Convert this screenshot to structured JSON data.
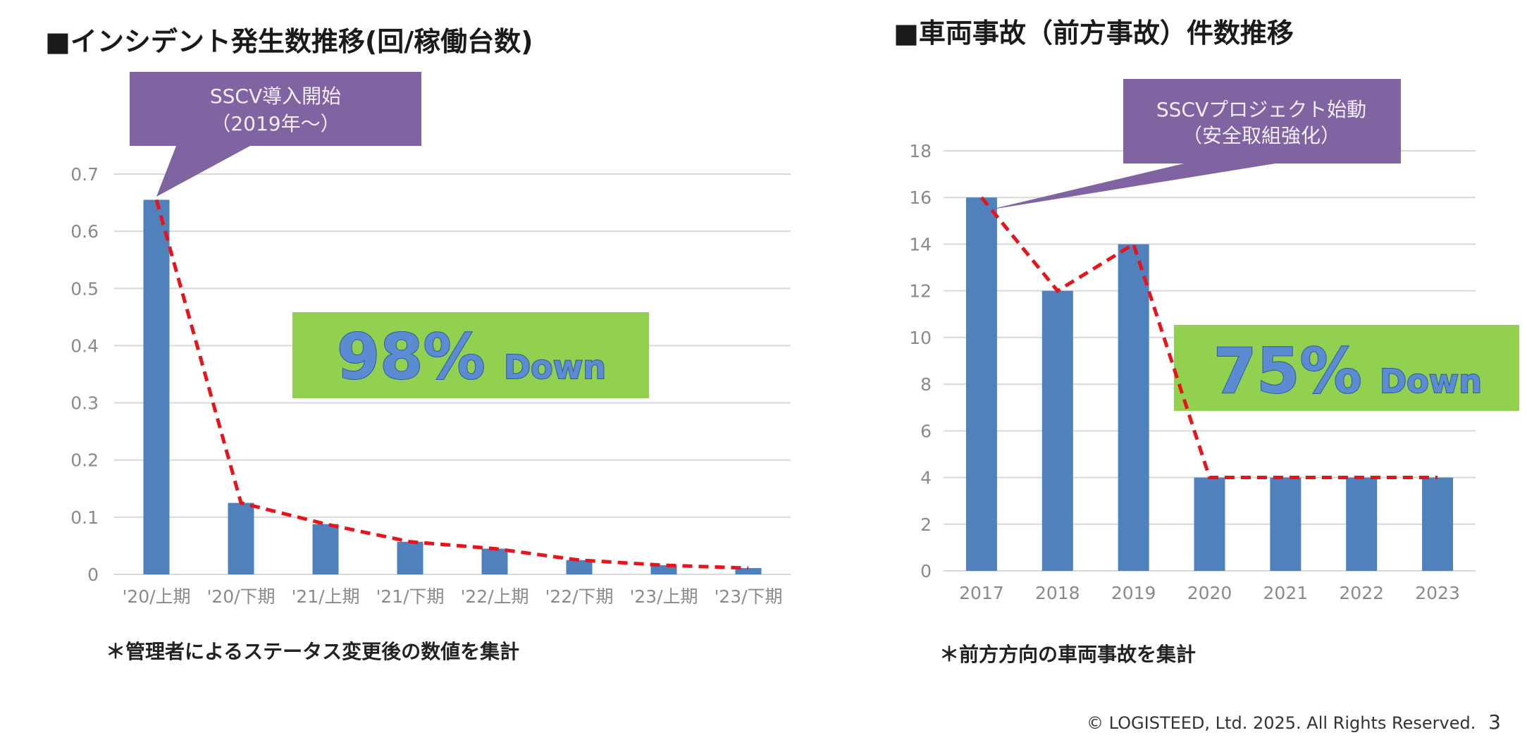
{
  "left": {
    "title": "■インシデント発生数推移(回/稼働台数)",
    "callout": {
      "line1": "SSCV導入開始",
      "line2": "（2019年～）"
    },
    "badge": {
      "percent": "98%",
      "word": "Down"
    },
    "note": "＊管理者によるステータス変更後の数値を集計"
  },
  "right": {
    "title": "■車両事故（前方事故）件数推移",
    "callout": {
      "line1": "SSCVプロジェクト始動",
      "line2": "（安全取組強化）"
    },
    "badge": {
      "percent": "75%",
      "word": "Down"
    },
    "note": "＊前方方向の車両事故を集計"
  },
  "footer": {
    "copyright": "© LOGISTEED, Ltd. 2025. All Rights Reserved.",
    "page_number": "3"
  },
  "colors": {
    "bar": "#4f81bd",
    "trend": "#e8141b",
    "callout": "#8064a2",
    "badge": "#92d050",
    "grid": "#d9d9d9"
  },
  "chart_data": [
    {
      "type": "bar",
      "categories": [
        "'20/上期",
        "'20/下期",
        "'21/上期",
        "'21/下期",
        "'22/上期",
        "'22/下期",
        "'23/上期",
        "'23/下期"
      ],
      "values": [
        0.655,
        0.125,
        0.088,
        0.057,
        0.045,
        0.025,
        0.016,
        0.011
      ],
      "ylim": [
        0,
        0.7
      ],
      "yticks": [
        "0",
        "0.1",
        "0.2",
        "0.3",
        "0.4",
        "0.5",
        "0.6",
        "0.7"
      ],
      "trend_line": true,
      "grid": true
    },
    {
      "type": "bar",
      "categories": [
        "2017",
        "2018",
        "2019",
        "2020",
        "2021",
        "2022",
        "2023"
      ],
      "values": [
        16,
        12,
        14,
        4,
        4,
        4,
        4
      ],
      "ylim": [
        0,
        18
      ],
      "yticks": [
        "0",
        "2",
        "4",
        "6",
        "8",
        "10",
        "12",
        "14",
        "16",
        "18"
      ],
      "trend_line": true,
      "grid": true
    }
  ]
}
